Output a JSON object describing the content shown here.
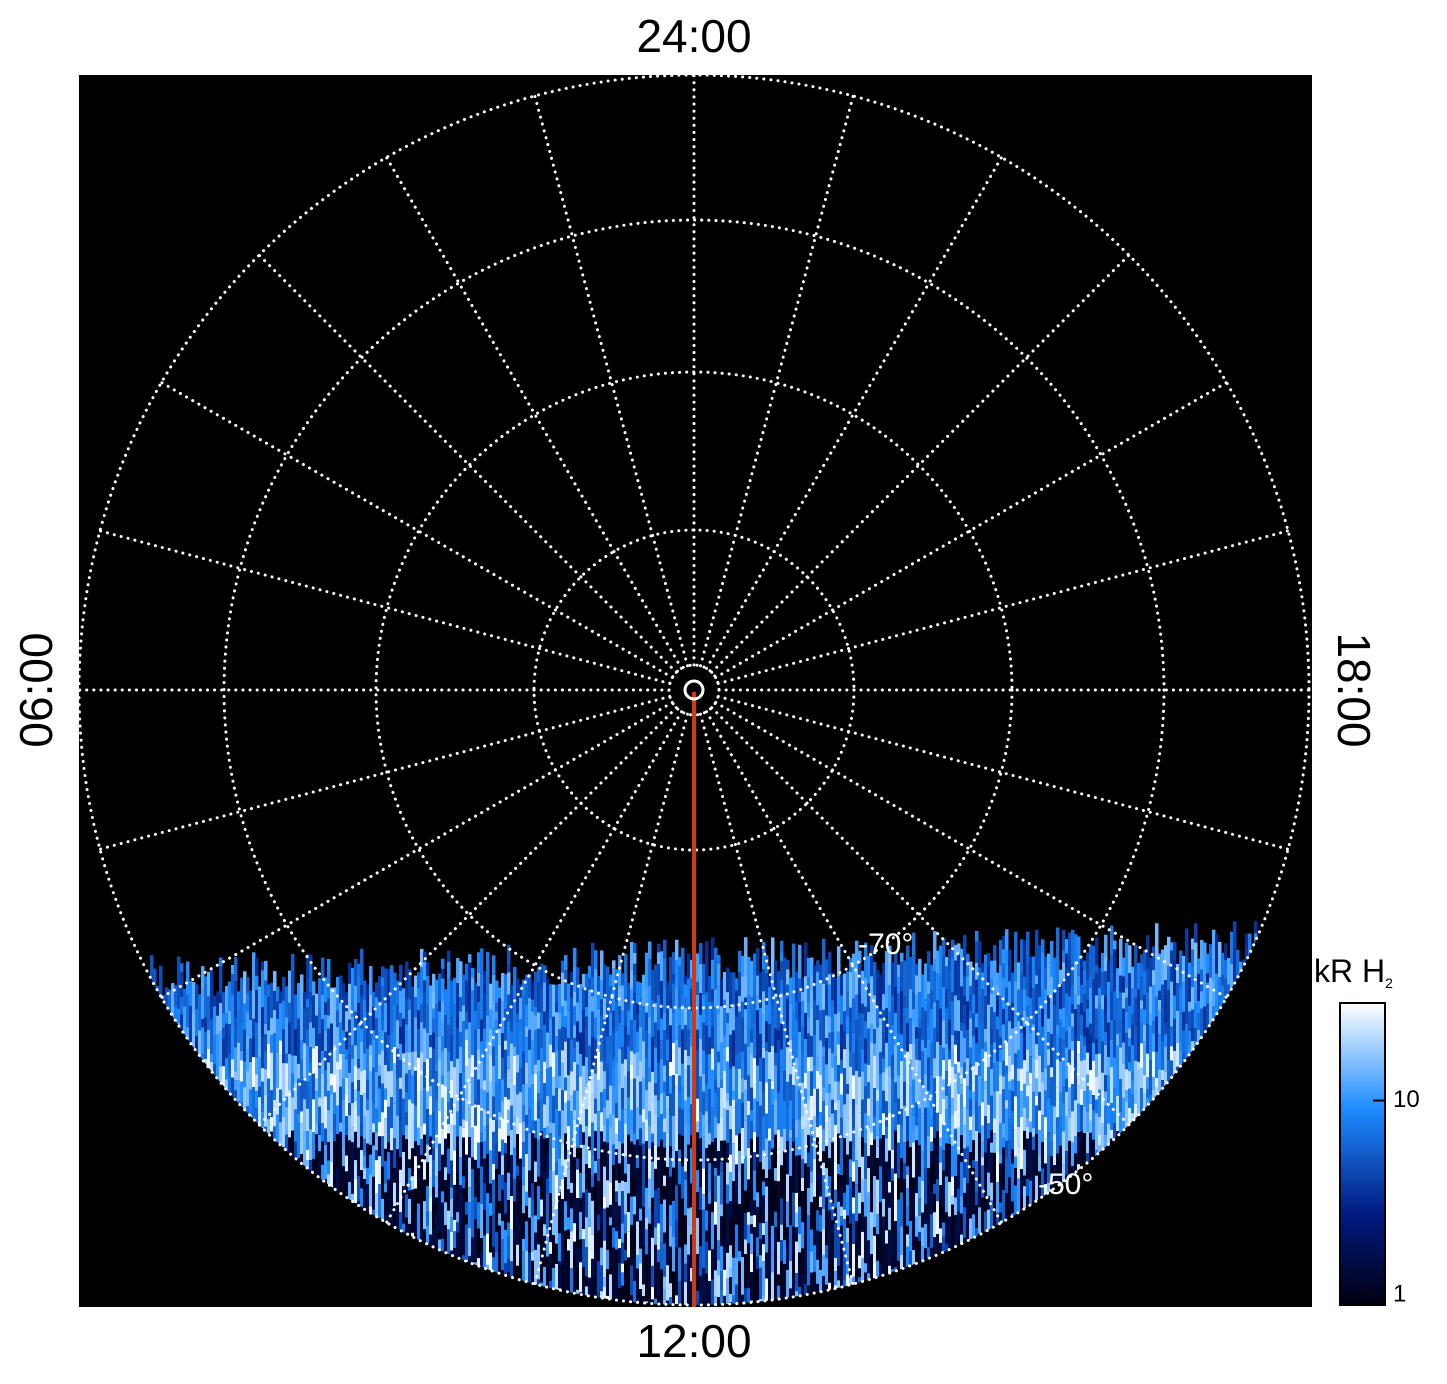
{
  "labels": {
    "top": "24:00",
    "bottom": "12:00",
    "left": "06:00",
    "right": "18:00"
  },
  "latitude_labels": [
    "-70°",
    "-50°"
  ],
  "colorbar": {
    "label": "kR H",
    "label_sub": "2",
    "range": [
      1,
      30
    ],
    "ticks": [
      1,
      10
    ],
    "log": true
  }
}
